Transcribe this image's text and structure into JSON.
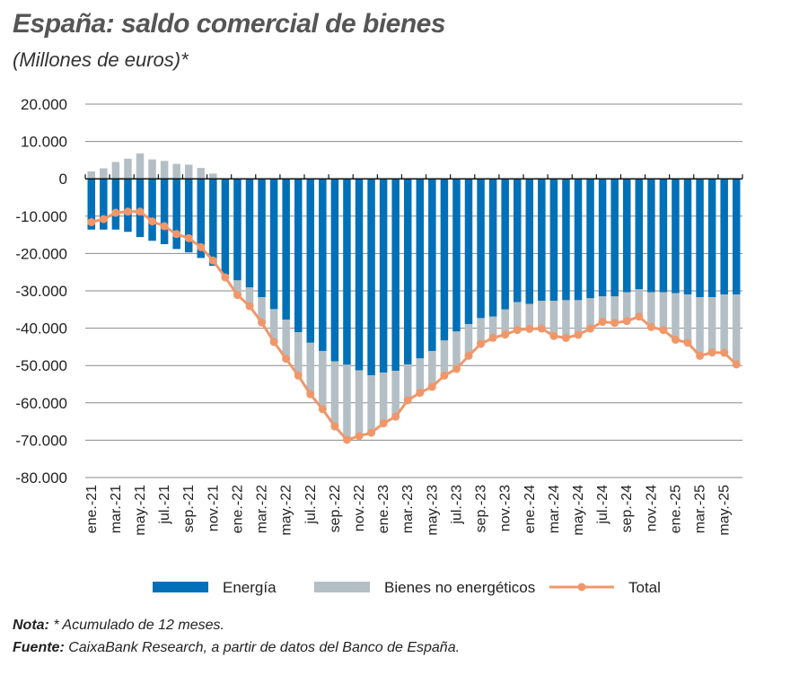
{
  "title": "España: saldo comercial de bienes",
  "subtitle": "(Millones de euros)*",
  "chart_data": {
    "type": "bar",
    "stacked": true,
    "title": "España: saldo comercial de bienes",
    "ylabel": "",
    "xlabel": "",
    "ylim": [
      -80000,
      20000
    ],
    "yticks": [
      20000,
      10000,
      0,
      -10000,
      -20000,
      -30000,
      -40000,
      -50000,
      -60000,
      -70000,
      -80000
    ],
    "ytick_labels": [
      "20.000",
      "10.000",
      "0",
      "-10.000",
      "-20.000",
      "-30.000",
      "-40.000",
      "-50.000",
      "-60.000",
      "-70.000",
      "-80.000"
    ],
    "grid": true,
    "legend": "bottom",
    "categories": [
      "ene.-21",
      "feb.-21",
      "mar.-21",
      "abr.-21",
      "may.-21",
      "jun.-21",
      "jul.-21",
      "ago.-21",
      "sep.-21",
      "oct.-21",
      "nov.-21",
      "dic.-21",
      "ene.-22",
      "feb.-22",
      "mar.-22",
      "abr.-22",
      "may.-22",
      "jun.-22",
      "jul.-22",
      "ago.-22",
      "sep.-22",
      "oct.-22",
      "nov.-22",
      "dic.-22",
      "ene.-23",
      "feb.-23",
      "mar.-23",
      "abr.-23",
      "may.-23",
      "jun.-23",
      "jul.-23",
      "ago.-23",
      "sep.-23",
      "oct.-23",
      "nov.-23",
      "dic.-23",
      "ene.-24",
      "feb.-24",
      "mar.-24",
      "abr.-24",
      "may.-24",
      "jun.-24",
      "jul.-24",
      "ago.-24",
      "sep.-24",
      "oct.-24",
      "nov.-24",
      "dic.-24",
      "ene.-25",
      "feb.-25",
      "mar.-25",
      "abr.-25",
      "may.-25",
      "jun.-25"
    ],
    "series": [
      {
        "name": "Energía",
        "type": "bar",
        "color": "#0070b8",
        "values": [
          -13600,
          -13600,
          -13600,
          -14200,
          -15600,
          -16600,
          -17500,
          -18800,
          -19700,
          -21200,
          -23300,
          -25700,
          -27200,
          -29100,
          -31700,
          -34900,
          -37700,
          -41100,
          -43900,
          -46100,
          -48900,
          -49800,
          -51300,
          -52600,
          -51900,
          -51400,
          -49700,
          -48100,
          -46100,
          -43300,
          -40900,
          -38900,
          -37300,
          -36900,
          -35000,
          -33000,
          -33500,
          -32700,
          -32700,
          -32500,
          -32500,
          -32000,
          -31500,
          -31500,
          -30400,
          -29600,
          -30400,
          -30400,
          -30600,
          -31000,
          -31700,
          -31700,
          -31000,
          -31000
        ]
      },
      {
        "name": "Bienes no energéticos",
        "type": "bar",
        "color": "#b3bfc4",
        "values": [
          2000,
          2800,
          4500,
          5400,
          6800,
          5200,
          4800,
          4000,
          3800,
          2900,
          1400,
          -700,
          -3900,
          -5000,
          -6800,
          -8800,
          -10500,
          -11600,
          -13800,
          -15600,
          -17400,
          -20100,
          -17600,
          -15400,
          -13600,
          -12300,
          -9600,
          -9200,
          -9600,
          -9400,
          -10000,
          -8500,
          -6900,
          -5700,
          -6700,
          -7500,
          -6700,
          -7400,
          -9400,
          -10100,
          -9300,
          -8100,
          -6800,
          -7100,
          -7700,
          -7300,
          -9300,
          -10100,
          -12500,
          -12900,
          -15700,
          -14800,
          -15600,
          -18700
        ]
      },
      {
        "name": "Total",
        "type": "line",
        "color": "#f0976a",
        "values": [
          -11600,
          -10800,
          -9100,
          -8800,
          -8800,
          -11400,
          -12700,
          -14800,
          -15900,
          -18300,
          -21900,
          -26400,
          -31100,
          -34100,
          -38500,
          -43700,
          -48200,
          -52700,
          -57700,
          -61700,
          -66300,
          -69900,
          -68900,
          -68000,
          -65500,
          -63700,
          -59300,
          -57300,
          -55700,
          -52700,
          -50900,
          -47400,
          -44200,
          -42600,
          -41700,
          -40500,
          -40200,
          -40100,
          -42100,
          -42600,
          -41800,
          -40100,
          -38300,
          -38600,
          -38100,
          -36900,
          -39700,
          -40500,
          -43100,
          -43900,
          -47400,
          -46500,
          -46600,
          -49700
        ]
      }
    ],
    "xtick_labels": [
      "ene.-21",
      "mar.-21",
      "may.-21",
      "jul.-21",
      "sep.-21",
      "nov.-21",
      "ene.-22",
      "mar.-22",
      "may.-22",
      "jul.-22",
      "sep.-22",
      "nov.-22",
      "ene.-23",
      "mar.-23",
      "may.-23",
      "jul.-23",
      "sep.-23",
      "nov.-23",
      "ene.-24",
      "mar.-24",
      "may.-24",
      "jul.-24",
      "sep.-24",
      "nov.-24",
      "ene.-25",
      "mar.-25",
      "may.-25"
    ]
  },
  "notes": {
    "nota_label": "Nota:",
    "nota_text": " * Acumulado de 12 meses.",
    "fuente_label": "Fuente:",
    "fuente_text": " CaixaBank Research, a partir de datos del Banco de España."
  }
}
